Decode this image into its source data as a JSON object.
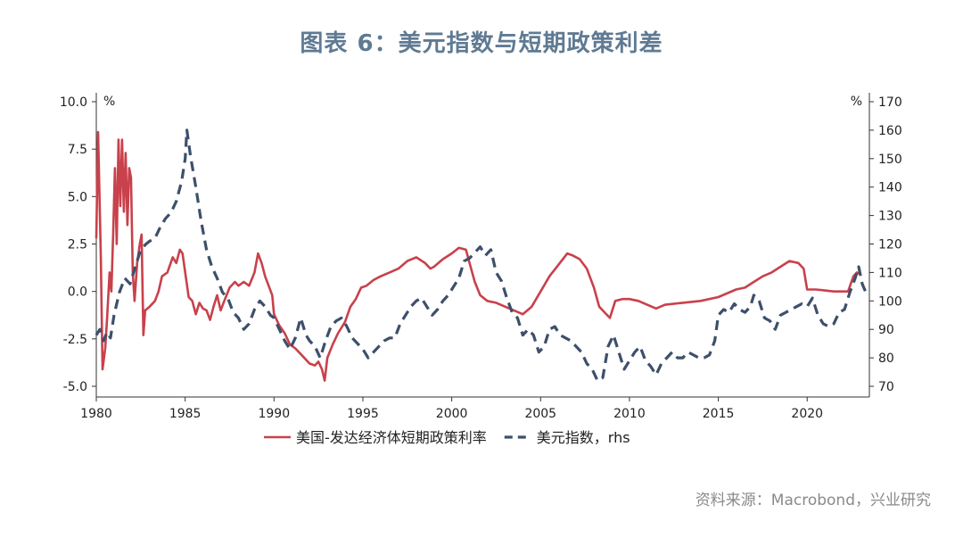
{
  "title": "图表 6：美元指数与短期政策利差",
  "source": "资料来源：Macrobond，兴业研究",
  "chart_data": {
    "type": "line",
    "xlim": [
      1980,
      2023.5
    ],
    "xticks": [
      1980,
      1985,
      1990,
      1995,
      2000,
      2005,
      2010,
      2015,
      2020
    ],
    "y_left": {
      "unit": "%",
      "ylim": [
        -5.0,
        10.0
      ],
      "ticks": [
        "10.0",
        "7.5",
        "5.0",
        "2.5",
        "0.0",
        "-2.5",
        "-5.0"
      ]
    },
    "y_right": {
      "unit": "%",
      "ylim": [
        70,
        170
      ],
      "ticks": [
        "170",
        "160",
        "150",
        "140",
        "130",
        "120",
        "110",
        "100",
        "90",
        "80",
        "70"
      ]
    },
    "series": [
      {
        "name": "美国-发达经济体短期政策利率",
        "axis": "left",
        "color": "#c8414b",
        "style": "solid",
        "points": [
          [
            1980.0,
            2.8
          ],
          [
            1980.1,
            8.4
          ],
          [
            1980.25,
            2.0
          ],
          [
            1980.35,
            -4.1
          ],
          [
            1980.5,
            -3.0
          ],
          [
            1980.6,
            -1.5
          ],
          [
            1980.75,
            1.0
          ],
          [
            1980.85,
            0.0
          ],
          [
            1980.95,
            3.0
          ],
          [
            1981.05,
            6.5
          ],
          [
            1981.15,
            2.5
          ],
          [
            1981.25,
            8.0
          ],
          [
            1981.35,
            4.5
          ],
          [
            1981.45,
            8.0
          ],
          [
            1981.55,
            4.2
          ],
          [
            1981.65,
            7.3
          ],
          [
            1981.75,
            3.5
          ],
          [
            1981.85,
            6.5
          ],
          [
            1981.95,
            6.0
          ],
          [
            1982.05,
            1.0
          ],
          [
            1982.15,
            -0.5
          ],
          [
            1982.3,
            1.5
          ],
          [
            1982.45,
            2.5
          ],
          [
            1982.55,
            3.0
          ],
          [
            1982.65,
            -2.3
          ],
          [
            1982.75,
            -1.0
          ],
          [
            1983.0,
            -0.8
          ],
          [
            1983.3,
            -0.5
          ],
          [
            1983.5,
            0.0
          ],
          [
            1983.7,
            0.8
          ],
          [
            1984.0,
            1.0
          ],
          [
            1984.3,
            1.8
          ],
          [
            1984.5,
            1.5
          ],
          [
            1984.7,
            2.2
          ],
          [
            1984.85,
            2.0
          ],
          [
            1985.0,
            1.0
          ],
          [
            1985.2,
            -0.3
          ],
          [
            1985.4,
            -0.5
          ],
          [
            1985.6,
            -1.2
          ],
          [
            1985.8,
            -0.6
          ],
          [
            1986.0,
            -0.9
          ],
          [
            1986.2,
            -1.0
          ],
          [
            1986.4,
            -1.5
          ],
          [
            1986.6,
            -0.8
          ],
          [
            1986.8,
            -0.2
          ],
          [
            1987.0,
            -1.0
          ],
          [
            1987.2,
            -0.5
          ],
          [
            1987.5,
            0.2
          ],
          [
            1987.8,
            0.5
          ],
          [
            1988.0,
            0.3
          ],
          [
            1988.3,
            0.5
          ],
          [
            1988.6,
            0.3
          ],
          [
            1988.9,
            1.0
          ],
          [
            1989.1,
            2.0
          ],
          [
            1989.3,
            1.5
          ],
          [
            1989.5,
            0.8
          ],
          [
            1989.7,
            0.3
          ],
          [
            1989.9,
            -0.2
          ],
          [
            1990.0,
            -1.2
          ],
          [
            1990.3,
            -1.8
          ],
          [
            1990.6,
            -2.2
          ],
          [
            1990.9,
            -2.8
          ],
          [
            1991.2,
            -3.0
          ],
          [
            1991.5,
            -3.3
          ],
          [
            1991.8,
            -3.6
          ],
          [
            1992.0,
            -3.8
          ],
          [
            1992.3,
            -3.9
          ],
          [
            1992.5,
            -3.7
          ],
          [
            1992.7,
            -4.1
          ],
          [
            1992.85,
            -4.7
          ],
          [
            1993.0,
            -3.5
          ],
          [
            1993.3,
            -2.8
          ],
          [
            1993.6,
            -2.2
          ],
          [
            1994.0,
            -1.6
          ],
          [
            1994.3,
            -0.8
          ],
          [
            1994.6,
            -0.4
          ],
          [
            1994.9,
            0.2
          ],
          [
            1995.2,
            0.3
          ],
          [
            1995.6,
            0.6
          ],
          [
            1996.0,
            0.8
          ],
          [
            1996.5,
            1.0
          ],
          [
            1997.0,
            1.2
          ],
          [
            1997.5,
            1.6
          ],
          [
            1998.0,
            1.8
          ],
          [
            1998.5,
            1.5
          ],
          [
            1998.8,
            1.2
          ],
          [
            1999.0,
            1.3
          ],
          [
            1999.5,
            1.7
          ],
          [
            2000.0,
            2.0
          ],
          [
            2000.4,
            2.3
          ],
          [
            2000.8,
            2.2
          ],
          [
            2001.0,
            1.5
          ],
          [
            2001.3,
            0.5
          ],
          [
            2001.6,
            -0.2
          ],
          [
            2002.0,
            -0.5
          ],
          [
            2002.5,
            -0.6
          ],
          [
            2003.0,
            -0.8
          ],
          [
            2003.5,
            -1.0
          ],
          [
            2004.0,
            -1.2
          ],
          [
            2004.5,
            -0.8
          ],
          [
            2005.0,
            0.0
          ],
          [
            2005.5,
            0.8
          ],
          [
            2006.0,
            1.4
          ],
          [
            2006.5,
            2.0
          ],
          [
            2006.8,
            1.9
          ],
          [
            2007.2,
            1.7
          ],
          [
            2007.6,
            1.2
          ],
          [
            2008.0,
            0.2
          ],
          [
            2008.3,
            -0.8
          ],
          [
            2008.6,
            -1.1
          ],
          [
            2008.9,
            -1.4
          ],
          [
            2009.2,
            -0.5
          ],
          [
            2009.6,
            -0.4
          ],
          [
            2010.0,
            -0.4
          ],
          [
            2010.5,
            -0.5
          ],
          [
            2011.0,
            -0.7
          ],
          [
            2011.5,
            -0.9
          ],
          [
            2012.0,
            -0.7
          ],
          [
            2013.0,
            -0.6
          ],
          [
            2014.0,
            -0.5
          ],
          [
            2015.0,
            -0.3
          ],
          [
            2016.0,
            0.1
          ],
          [
            2016.5,
            0.2
          ],
          [
            2017.0,
            0.5
          ],
          [
            2017.5,
            0.8
          ],
          [
            2018.0,
            1.0
          ],
          [
            2018.5,
            1.3
          ],
          [
            2019.0,
            1.6
          ],
          [
            2019.5,
            1.5
          ],
          [
            2019.8,
            1.2
          ],
          [
            2020.0,
            0.1
          ],
          [
            2020.5,
            0.1
          ],
          [
            2021.0,
            0.05
          ],
          [
            2021.5,
            0.0
          ],
          [
            2022.0,
            0.0
          ],
          [
            2022.3,
            0.0
          ],
          [
            2022.6,
            0.8
          ],
          [
            2022.8,
            1.0
          ],
          [
            2023.0,
            0.9
          ]
        ]
      },
      {
        "name": "美元指数，rhs",
        "axis": "right",
        "color": "#3d4f6b",
        "style": "dashed",
        "points": [
          [
            1980.0,
            88
          ],
          [
            1980.2,
            90
          ],
          [
            1980.4,
            86
          ],
          [
            1980.6,
            89
          ],
          [
            1980.8,
            87
          ],
          [
            1981.0,
            95
          ],
          [
            1981.3,
            103
          ],
          [
            1981.6,
            108
          ],
          [
            1981.9,
            106
          ],
          [
            1982.2,
            112
          ],
          [
            1982.5,
            118
          ],
          [
            1982.8,
            120
          ],
          [
            1983.0,
            121
          ],
          [
            1983.3,
            122
          ],
          [
            1983.6,
            126
          ],
          [
            1983.9,
            129
          ],
          [
            1984.2,
            131
          ],
          [
            1984.5,
            135
          ],
          [
            1984.8,
            142
          ],
          [
            1985.0,
            150
          ],
          [
            1985.1,
            160
          ],
          [
            1985.3,
            151
          ],
          [
            1985.6,
            140
          ],
          [
            1985.9,
            128
          ],
          [
            1986.2,
            118
          ],
          [
            1986.5,
            112
          ],
          [
            1986.8,
            108
          ],
          [
            1987.1,
            103
          ],
          [
            1987.4,
            101
          ],
          [
            1987.7,
            96
          ],
          [
            1988.0,
            94
          ],
          [
            1988.3,
            90
          ],
          [
            1988.6,
            92
          ],
          [
            1988.9,
            97
          ],
          [
            1989.2,
            100
          ],
          [
            1989.5,
            98
          ],
          [
            1989.8,
            95
          ],
          [
            1990.0,
            94
          ],
          [
            1990.3,
            90
          ],
          [
            1990.6,
            86
          ],
          [
            1990.9,
            83
          ],
          [
            1991.2,
            87
          ],
          [
            1991.5,
            94
          ],
          [
            1991.8,
            88
          ],
          [
            1992.0,
            86
          ],
          [
            1992.3,
            84
          ],
          [
            1992.6,
            80
          ],
          [
            1992.9,
            86
          ],
          [
            1993.2,
            91
          ],
          [
            1993.5,
            93
          ],
          [
            1993.8,
            94
          ],
          [
            1994.1,
            91
          ],
          [
            1994.4,
            87
          ],
          [
            1994.7,
            85
          ],
          [
            1995.0,
            83
          ],
          [
            1995.3,
            80
          ],
          [
            1995.6,
            82
          ],
          [
            1995.9,
            84
          ],
          [
            1996.2,
            86
          ],
          [
            1996.5,
            87
          ],
          [
            1996.8,
            87
          ],
          [
            1997.1,
            92
          ],
          [
            1997.4,
            95
          ],
          [
            1997.7,
            98
          ],
          [
            1998.0,
            100
          ],
          [
            1998.3,
            101
          ],
          [
            1998.6,
            98
          ],
          [
            1998.9,
            95
          ],
          [
            1999.2,
            97
          ],
          [
            1999.5,
            100
          ],
          [
            1999.8,
            102
          ],
          [
            2000.1,
            105
          ],
          [
            2000.4,
            108
          ],
          [
            2000.7,
            114
          ],
          [
            2001.0,
            115
          ],
          [
            2001.3,
            117
          ],
          [
            2001.6,
            119
          ],
          [
            2001.9,
            116
          ],
          [
            2002.2,
            118
          ],
          [
            2002.5,
            110
          ],
          [
            2002.8,
            107
          ],
          [
            2003.1,
            101
          ],
          [
            2003.4,
            96
          ],
          [
            2003.7,
            94
          ],
          [
            2004.0,
            88
          ],
          [
            2004.3,
            90
          ],
          [
            2004.6,
            88
          ],
          [
            2004.9,
            82
          ],
          [
            2005.2,
            84
          ],
          [
            2005.5,
            90
          ],
          [
            2005.8,
            91
          ],
          [
            2006.1,
            88
          ],
          [
            2006.4,
            87
          ],
          [
            2006.7,
            86
          ],
          [
            2007.0,
            84
          ],
          [
            2007.3,
            82
          ],
          [
            2007.6,
            78
          ],
          [
            2007.9,
            76
          ],
          [
            2008.2,
            72
          ],
          [
            2008.5,
            73
          ],
          [
            2008.8,
            84
          ],
          [
            2009.1,
            88
          ],
          [
            2009.4,
            82
          ],
          [
            2009.7,
            76
          ],
          [
            2010.0,
            79
          ],
          [
            2010.3,
            82
          ],
          [
            2010.6,
            84
          ],
          [
            2010.9,
            79
          ],
          [
            2011.2,
            77
          ],
          [
            2011.5,
            74
          ],
          [
            2011.8,
            78
          ],
          [
            2012.1,
            80
          ],
          [
            2012.4,
            82
          ],
          [
            2012.7,
            80
          ],
          [
            2013.0,
            80
          ],
          [
            2013.3,
            82
          ],
          [
            2013.6,
            81
          ],
          [
            2013.9,
            80
          ],
          [
            2014.2,
            80
          ],
          [
            2014.5,
            81
          ],
          [
            2014.8,
            86
          ],
          [
            2015.0,
            95
          ],
          [
            2015.3,
            97
          ],
          [
            2015.6,
            96
          ],
          [
            2015.9,
            99
          ],
          [
            2016.2,
            97
          ],
          [
            2016.5,
            96
          ],
          [
            2016.8,
            98
          ],
          [
            2017.0,
            102
          ],
          [
            2017.3,
            100
          ],
          [
            2017.6,
            94
          ],
          [
            2017.9,
            93
          ],
          [
            2018.2,
            90
          ],
          [
            2018.5,
            95
          ],
          [
            2018.8,
            96
          ],
          [
            2019.1,
            97
          ],
          [
            2019.4,
            98
          ],
          [
            2019.7,
            99
          ],
          [
            2020.0,
            98
          ],
          [
            2020.3,
            101
          ],
          [
            2020.6,
            95
          ],
          [
            2020.9,
            92
          ],
          [
            2021.2,
            91
          ],
          [
            2021.5,
            92
          ],
          [
            2021.8,
            96
          ],
          [
            2022.1,
            97
          ],
          [
            2022.4,
            103
          ],
          [
            2022.7,
            108
          ],
          [
            2022.9,
            112
          ],
          [
            2023.1,
            106
          ],
          [
            2023.3,
            103
          ]
        ]
      }
    ],
    "legend": {
      "position": "bottom"
    }
  }
}
